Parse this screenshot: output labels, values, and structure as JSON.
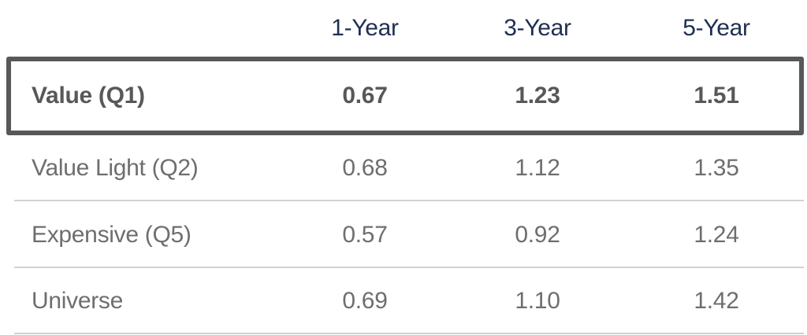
{
  "chart_data": {
    "type": "table",
    "columns": [
      "",
      "1-Year",
      "3-Year",
      "5-Year"
    ],
    "rows": [
      [
        "Value (Q1)",
        0.67,
        1.23,
        1.51
      ],
      [
        "Value Light (Q2)",
        0.68,
        1.12,
        1.35
      ],
      [
        "Expensive (Q5)",
        0.57,
        0.92,
        1.24
      ],
      [
        "Universe",
        0.69,
        1.1,
        1.42
      ]
    ],
    "highlighted_row": "Value (Q1)",
    "layout": "first column left-aligned labels, value columns centered, highlighted row outlined with dark box, light gray dividers between rows"
  },
  "table": {
    "column_headers": [
      "1-Year",
      "3-Year",
      "5-Year"
    ],
    "rows": [
      {
        "label": "Value (Q1)",
        "values": [
          "0.67",
          "1.23",
          "1.51"
        ],
        "highlighted": true
      },
      {
        "label": "Value Light (Q2)",
        "values": [
          "0.68",
          "1.12",
          "1.35"
        ],
        "highlighted": false
      },
      {
        "label": "Expensive (Q5)",
        "values": [
          "0.57",
          "0.92",
          "1.24"
        ],
        "highlighted": false
      },
      {
        "label": "Universe",
        "values": [
          "0.69",
          "1.10",
          "1.42"
        ],
        "highlighted": false
      }
    ]
  },
  "colors": {
    "header_text": "#1f2e52",
    "highlight_text": "#57585a",
    "row_text": "#6d6e70",
    "highlight_border": "#57585a",
    "divider": "#d2d1cf",
    "background": "#ffffff"
  }
}
